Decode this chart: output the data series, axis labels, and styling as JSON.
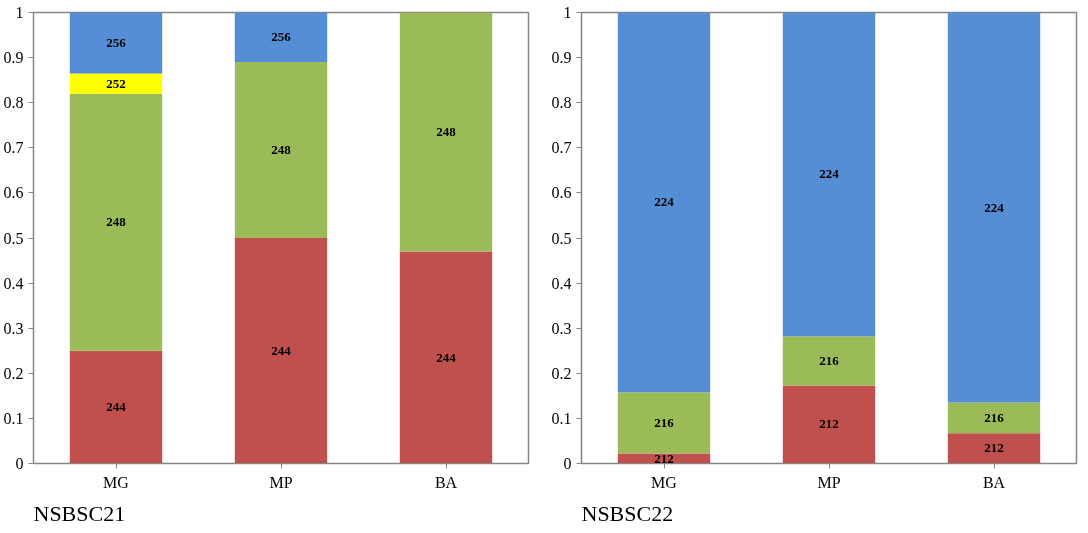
{
  "chart_data": [
    {
      "type": "bar",
      "title": "NSBSC21",
      "categories": [
        "MG",
        "MP",
        "BA"
      ],
      "stacked": true,
      "ylim": [
        0,
        1
      ],
      "yticks": [
        0,
        0.1,
        0.2,
        0.3,
        0.4,
        0.5,
        0.6,
        0.7,
        0.8,
        0.9,
        1
      ],
      "grid": false,
      "series": [
        {
          "name": "244",
          "color": "#c0504d",
          "values": [
            0.25,
            0.5,
            0.47
          ]
        },
        {
          "name": "248",
          "color": "#9bbb59",
          "values": [
            0.57,
            0.39,
            0.53
          ]
        },
        {
          "name": "252",
          "color": "#ffff00",
          "values": [
            0.045,
            null,
            null
          ]
        },
        {
          "name": "256",
          "color": "#558ed5",
          "values": [
            0.135,
            0.11,
            null
          ]
        }
      ]
    },
    {
      "type": "bar",
      "title": "NSBSC22",
      "categories": [
        "MG",
        "MP",
        "BA"
      ],
      "stacked": true,
      "ylim": [
        0,
        1
      ],
      "yticks": [
        0,
        0.1,
        0.2,
        0.3,
        0.4,
        0.5,
        0.6,
        0.7,
        0.8,
        0.9,
        1
      ],
      "grid": false,
      "series": [
        {
          "name": "212",
          "color": "#c0504d",
          "values": [
            0.022,
            0.173,
            0.067
          ]
        },
        {
          "name": "216",
          "color": "#9bbb59",
          "values": [
            0.136,
            0.109,
            0.068
          ]
        },
        {
          "name": "224",
          "color": "#558ed5",
          "values": [
            0.842,
            0.718,
            0.865
          ]
        }
      ]
    }
  ]
}
